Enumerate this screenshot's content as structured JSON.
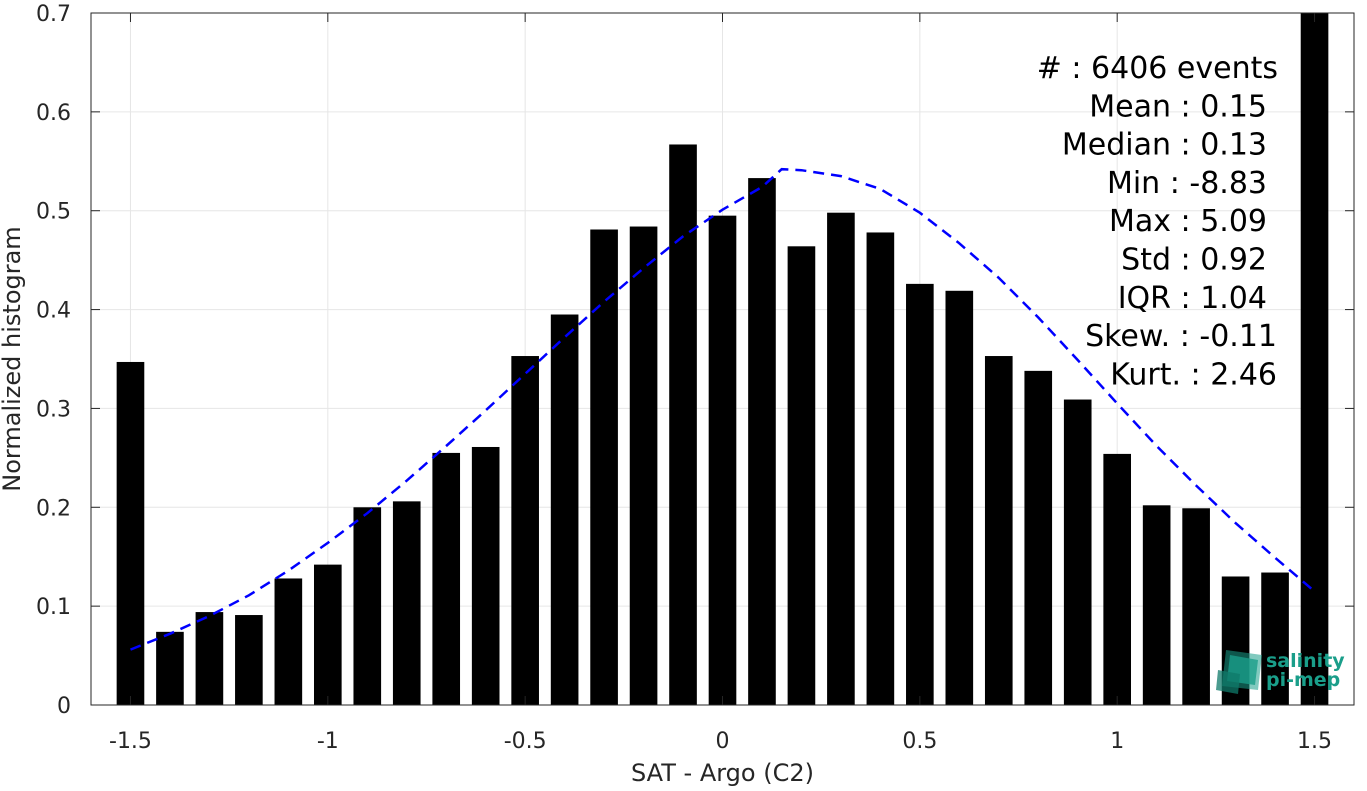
{
  "chart_data": {
    "type": "bar",
    "xlabel": "SAT - Argo (C2)",
    "ylabel": "Normalized histogram",
    "xlim": [
      -1.6,
      1.6
    ],
    "ylim": [
      0,
      0.7
    ],
    "grid": true,
    "x_ticks": [
      -1.5,
      -1,
      -0.5,
      0,
      0.5,
      1,
      1.5
    ],
    "x_tick_labels": [
      "-1.5",
      "-1",
      "-0.5",
      "0",
      "0.5",
      "1",
      "1.5"
    ],
    "y_ticks": [
      0,
      0.1,
      0.2,
      0.3,
      0.4,
      0.5,
      0.6,
      0.7
    ],
    "y_tick_labels": [
      "0",
      "0.1",
      "0.2",
      "0.3",
      "0.4",
      "0.5",
      "0.6",
      "0.7"
    ],
    "bar_width": 0.07,
    "series": [
      {
        "kind": "bar",
        "color": "#000000",
        "x": [
          -1.5,
          -1.4,
          -1.3,
          -1.2,
          -1.1,
          -1.0,
          -0.9,
          -0.8,
          -0.7,
          -0.6,
          -0.5,
          -0.4,
          -0.3,
          -0.2,
          -0.1,
          0.0,
          0.1,
          0.2,
          0.3,
          0.4,
          0.5,
          0.6,
          0.7,
          0.8,
          0.9,
          1.0,
          1.1,
          1.2,
          1.3,
          1.4,
          1.5
        ],
        "values": [
          0.347,
          0.074,
          0.094,
          0.091,
          0.128,
          0.142,
          0.2,
          0.206,
          0.255,
          0.261,
          0.353,
          0.395,
          0.481,
          0.484,
          0.567,
          0.495,
          0.533,
          0.464,
          0.498,
          0.478,
          0.426,
          0.419,
          0.353,
          0.338,
          0.309,
          0.254,
          0.202,
          0.199,
          0.13,
          0.134,
          0.7
        ]
      },
      {
        "kind": "line",
        "style": "dashed",
        "color": "#0000ff",
        "x": [
          -1.5,
          -1.4,
          -1.3,
          -1.2,
          -1.1,
          -1.0,
          -0.9,
          -0.8,
          -0.7,
          -0.6,
          -0.5,
          -0.4,
          -0.3,
          -0.2,
          -0.1,
          0.0,
          0.1,
          0.15,
          0.2,
          0.3,
          0.4,
          0.5,
          0.6,
          0.7,
          0.8,
          0.9,
          1.0,
          1.1,
          1.2,
          1.3,
          1.4,
          1.5
        ],
        "values": [
          0.056,
          0.072,
          0.09,
          0.111,
          0.136,
          0.164,
          0.194,
          0.227,
          0.262,
          0.298,
          0.335,
          0.372,
          0.408,
          0.442,
          0.474,
          0.501,
          0.524,
          0.542,
          0.541,
          0.535,
          0.522,
          0.498,
          0.467,
          0.432,
          0.392,
          0.349,
          0.305,
          0.262,
          0.222,
          0.184,
          0.149,
          0.115
        ]
      }
    ],
    "annotations": [
      "#  : 6406 events",
      "Mean : 0.15",
      "Median : 0.13",
      "Min : -8.83",
      "Max : 5.09",
      "Std : 0.92",
      "IQR : 1.04",
      "Skew. : -0.11",
      "Kurt. : 2.46"
    ],
    "annotation_placement": "top-right",
    "logo": {
      "line1": "salinity",
      "line2": "pi-mep",
      "color": "#1a9e8a"
    }
  }
}
